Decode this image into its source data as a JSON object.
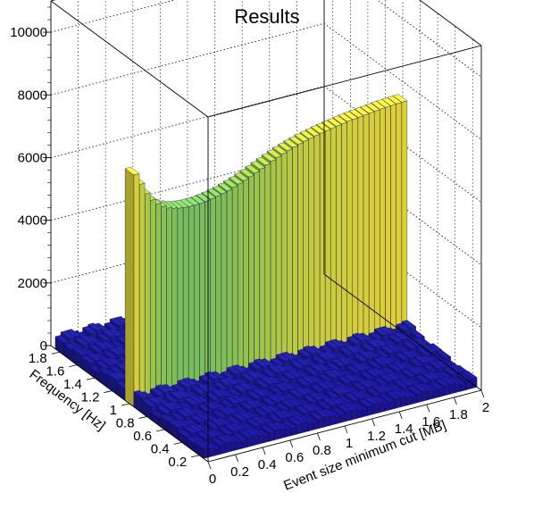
{
  "chart_data": {
    "type": "lego3d",
    "title": "Results",
    "xlabel": "Event size minimum cut [MB]",
    "ylabel": "Frequency [Hz]",
    "zlabel": "",
    "xlim": [
      0,
      2
    ],
    "ylim": [
      0.1,
      1.9
    ],
    "zlim": [
      0,
      11000
    ],
    "x_ticks": [
      "0",
      "0.2",
      "0.4",
      "0.6",
      "0.8",
      "1",
      "1.2",
      "1.4",
      "1.6",
      "1.8",
      "2"
    ],
    "y_ticks": [
      "0.2",
      "0.4",
      "0.6",
      "0.8",
      "1",
      "1.2",
      "1.4",
      "1.6",
      "1.8"
    ],
    "z_ticks": [
      "0",
      "2000",
      "4000",
      "6000",
      "8000",
      "10000"
    ],
    "grid": true,
    "colormap": [
      "#1a0d8c",
      "#2a3fb0",
      "#2e74c9",
      "#21a3b8",
      "#43c28a",
      "#9ad252",
      "#f0e23a"
    ],
    "dominant_row": {
      "frequency": 1.0,
      "x": [
        0.02,
        0.06,
        0.1,
        0.14,
        0.18,
        0.22,
        0.26,
        0.3,
        0.34,
        0.38,
        0.42,
        0.46,
        0.5,
        0.54,
        0.58,
        0.62,
        0.66,
        0.7,
        0.74,
        0.78,
        0.82,
        0.86,
        0.9,
        0.94,
        0.98,
        1.02,
        1.06,
        1.1,
        1.14,
        1.18,
        1.22,
        1.26,
        1.3,
        1.34,
        1.38,
        1.42,
        1.46,
        1.5,
        1.54,
        1.58,
        1.62,
        1.66,
        1.7,
        1.74,
        1.78,
        1.82,
        1.86,
        1.9,
        1.94,
        1.98
      ],
      "z": [
        7400,
        7050,
        6700,
        6450,
        6280,
        6150,
        6060,
        6000,
        5960,
        5940,
        5930,
        5930,
        5940,
        5960,
        5990,
        6030,
        6070,
        6120,
        6180,
        6240,
        6310,
        6380,
        6460,
        6540,
        6620,
        6700,
        6770,
        6840,
        6900,
        6960,
        7010,
        7060,
        7100,
        7140,
        7180,
        7210,
        7240,
        7270,
        7300,
        7330,
        7350,
        7370,
        7390,
        7410,
        7430,
        7450,
        7460,
        7470,
        7480,
        7490
      ]
    },
    "background_rows": {
      "frequency": [
        0.2,
        0.3,
        0.4,
        0.5,
        0.6,
        0.7,
        0.8,
        0.9,
        1.1,
        1.2,
        1.3,
        1.4,
        1.5,
        1.6,
        1.7,
        1.8
      ],
      "level": [
        220,
        240,
        250,
        260,
        270,
        300,
        320,
        350,
        340,
        320,
        300,
        290,
        280,
        300,
        330,
        360
      ]
    }
  }
}
